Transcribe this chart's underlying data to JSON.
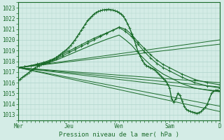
{
  "bg_color": "#d4ece6",
  "grid_color": "#b0d4cc",
  "line_color": "#1a6b2a",
  "marker_color": "#1a6b2a",
  "ylabel_values": [
    1013,
    1014,
    1015,
    1016,
    1017,
    1018,
    1019,
    1020,
    1021,
    1022,
    1023
  ],
  "xtick_labels": [
    "Mer",
    "Jeu",
    "Ven",
    "Sam",
    "D"
  ],
  "xlabel": "Pression niveau de la mer( hPa )",
  "ylim": [
    1012.5,
    1023.5
  ],
  "xlim": [
    0,
    96
  ],
  "xtick_positions": [
    0,
    24,
    48,
    72,
    96
  ],
  "forecast_lines": [
    {
      "x": [
        0,
        96
      ],
      "y": [
        1017.4,
        1013.3
      ]
    },
    {
      "x": [
        0,
        96
      ],
      "y": [
        1017.4,
        1013.8
      ]
    },
    {
      "x": [
        0,
        96
      ],
      "y": [
        1017.4,
        1015.2
      ]
    },
    {
      "x": [
        0,
        96
      ],
      "y": [
        1017.4,
        1015.6
      ]
    },
    {
      "x": [
        0,
        96
      ],
      "y": [
        1017.4,
        1016.0
      ]
    },
    {
      "x": [
        0,
        96
      ],
      "y": [
        1017.4,
        1019.6
      ]
    },
    {
      "x": [
        0,
        96
      ],
      "y": [
        1017.4,
        1020.0
      ]
    }
  ],
  "main_curve_x": [
    0,
    1,
    2,
    3,
    4,
    5,
    6,
    7,
    8,
    9,
    10,
    11,
    12,
    13,
    14,
    15,
    16,
    17,
    18,
    19,
    20,
    21,
    22,
    23,
    24,
    25,
    26,
    27,
    28,
    29,
    30,
    31,
    32,
    33,
    34,
    35,
    36,
    37,
    38,
    39,
    40,
    41,
    42,
    43,
    44,
    45,
    46,
    47,
    48,
    49,
    50,
    51,
    52,
    53,
    54,
    55,
    56,
    57,
    58,
    59,
    60,
    61,
    62,
    63,
    64,
    65,
    66,
    67,
    68,
    69,
    70,
    71,
    72,
    73,
    74,
    75,
    76,
    77,
    78,
    79,
    80,
    81,
    82,
    83,
    84,
    85,
    86,
    87,
    88,
    89,
    90,
    91,
    92,
    93,
    94,
    95,
    96
  ],
  "main_curve_y": [
    1016.2,
    1016.35,
    1016.5,
    1016.65,
    1016.8,
    1016.95,
    1017.1,
    1017.25,
    1017.4,
    1017.5,
    1017.6,
    1017.7,
    1017.8,
    1017.85,
    1017.9,
    1018.0,
    1018.1,
    1018.2,
    1018.35,
    1018.5,
    1018.65,
    1018.8,
    1018.95,
    1019.1,
    1019.3,
    1019.5,
    1019.75,
    1020.0,
    1020.3,
    1020.6,
    1020.9,
    1021.2,
    1021.5,
    1021.8,
    1022.0,
    1022.2,
    1022.4,
    1022.55,
    1022.65,
    1022.72,
    1022.78,
    1022.82,
    1022.84,
    1022.85,
    1022.82,
    1022.78,
    1022.72,
    1022.65,
    1022.55,
    1022.4,
    1022.2,
    1021.9,
    1021.5,
    1021.1,
    1020.6,
    1020.1,
    1019.5,
    1018.9,
    1018.5,
    1018.1,
    1017.8,
    1017.6,
    1017.5,
    1017.4,
    1017.3,
    1017.2,
    1017.0,
    1016.8,
    1016.6,
    1016.4,
    1016.2,
    1015.9,
    1015.5,
    1014.5,
    1014.2,
    1014.5,
    1015.0,
    1014.8,
    1014.3,
    1013.8,
    1013.5,
    1013.4,
    1013.3,
    1013.25,
    1013.2,
    1013.15,
    1013.2,
    1013.3,
    1013.5,
    1013.7,
    1014.0,
    1014.5,
    1015.0,
    1015.2,
    1015.3,
    1015.3,
    1015.2
  ],
  "secondary_curves": [
    {
      "x": [
        0,
        3,
        6,
        9,
        12,
        15,
        18,
        21,
        24,
        27,
        30,
        33,
        36,
        39,
        42,
        45,
        48,
        51,
        54,
        57,
        60,
        63,
        66,
        69,
        72,
        78,
        84,
        90,
        96
      ],
      "y": [
        1017.4,
        1017.5,
        1017.6,
        1017.7,
        1017.85,
        1018.0,
        1018.2,
        1018.5,
        1018.8,
        1019.1,
        1019.4,
        1019.7,
        1020.0,
        1020.3,
        1020.6,
        1020.9,
        1021.2,
        1021.0,
        1020.5,
        1019.8,
        1019.2,
        1018.6,
        1018.1,
        1017.7,
        1017.4,
        1016.8,
        1016.3,
        1016.0,
        1015.8
      ],
      "has_marker": true
    },
    {
      "x": [
        0,
        3,
        6,
        9,
        12,
        15,
        18,
        21,
        24,
        27,
        30,
        33,
        36,
        39,
        42,
        45,
        48,
        51,
        54,
        57,
        60,
        63,
        66,
        69,
        72,
        78,
        84,
        90,
        96
      ],
      "y": [
        1017.4,
        1017.5,
        1017.6,
        1017.75,
        1017.9,
        1018.1,
        1018.35,
        1018.65,
        1018.95,
        1019.25,
        1019.55,
        1019.85,
        1020.15,
        1020.4,
        1020.65,
        1020.9,
        1021.15,
        1020.8,
        1020.3,
        1019.6,
        1018.9,
        1018.3,
        1017.8,
        1017.4,
        1017.1,
        1016.5,
        1016.0,
        1015.7,
        1015.5
      ],
      "has_marker": true
    },
    {
      "x": [
        0,
        3,
        6,
        9,
        12,
        15,
        18,
        21,
        24,
        27,
        30,
        33,
        36,
        39,
        42,
        45,
        48,
        51,
        54,
        57,
        60,
        63,
        66,
        69,
        72,
        78,
        84,
        90,
        96
      ],
      "y": [
        1017.4,
        1017.48,
        1017.56,
        1017.65,
        1017.75,
        1017.9,
        1018.1,
        1018.35,
        1018.6,
        1018.85,
        1019.1,
        1019.35,
        1019.6,
        1019.82,
        1020.05,
        1020.25,
        1020.45,
        1020.0,
        1019.5,
        1018.8,
        1018.2,
        1017.65,
        1017.2,
        1016.8,
        1016.5,
        1015.9,
        1015.5,
        1015.3,
        1015.15
      ],
      "has_marker": false
    }
  ]
}
